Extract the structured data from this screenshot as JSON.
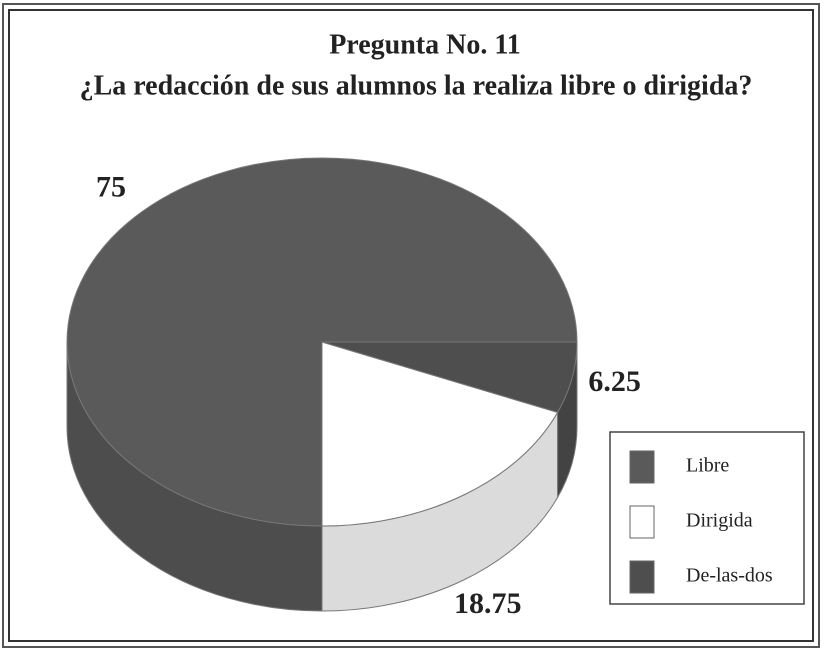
{
  "chart_data": {
    "type": "pie3d",
    "title": "Pregunta No. 11",
    "subtitle": "¿La redacción de sus alumnos la realiza libre o dirigida?",
    "categories": [
      "Libre",
      "Dirigida",
      "De-las-dos"
    ],
    "values": [
      75,
      18.75,
      6.25
    ],
    "colors": [
      "#5a5a5a",
      "#ffffff",
      "#4e4e4e"
    ],
    "legend": "right"
  }
}
